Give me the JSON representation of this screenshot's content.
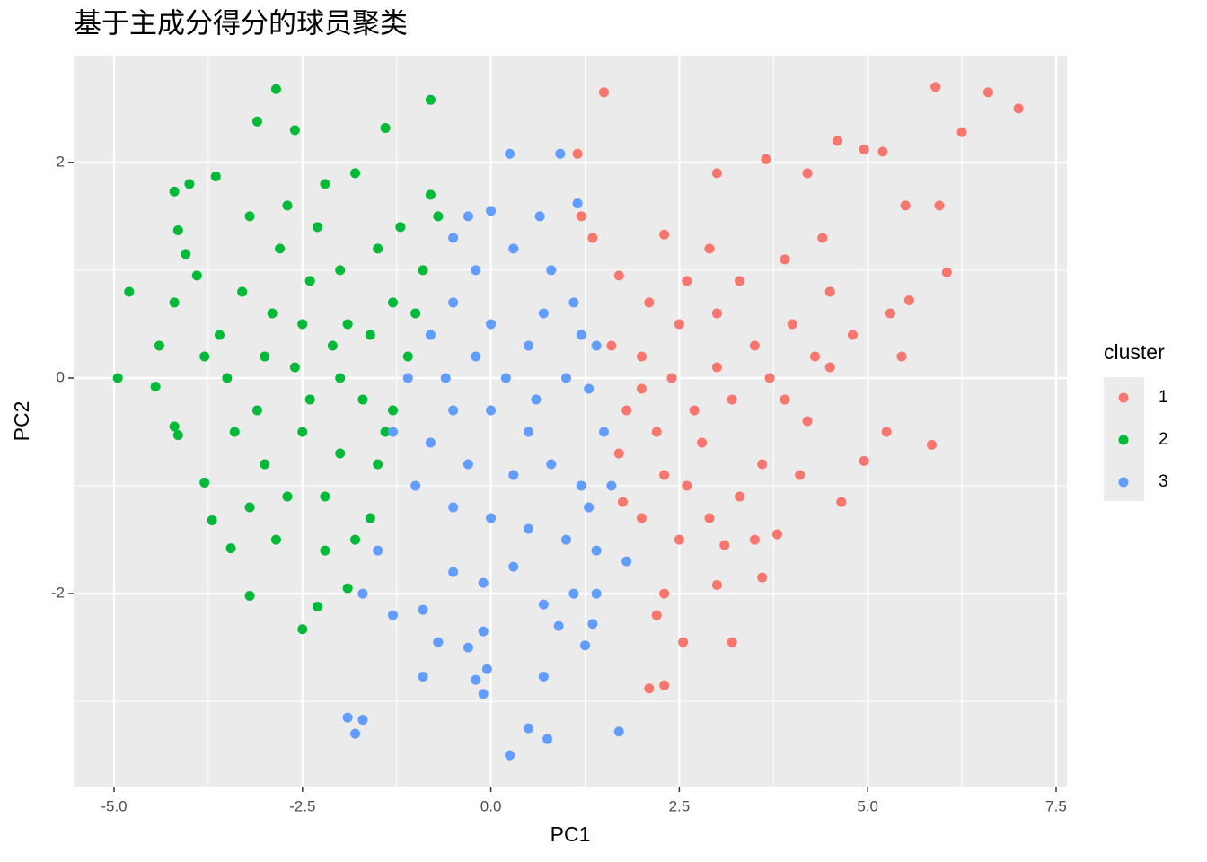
{
  "chart_data": {
    "type": "scatter",
    "title": "基于主成分得分的球员聚类",
    "x_label": "PC1",
    "y_label": "PC2",
    "legend_title": "cluster",
    "legend_position": "right",
    "grid": true,
    "xlim": [
      -5.536,
      7.643
    ],
    "ylim": [
      -3.79,
      2.99
    ],
    "xticks": [
      {
        "value": -5,
        "label": "-5.0"
      },
      -2.5,
      {
        "value": 0,
        "label": "0.0"
      },
      2.5,
      {
        "value": 5,
        "label": "5.0"
      },
      {
        "value": 7.5,
        "label": "7.5"
      }
    ],
    "yticks": [
      -2,
      0,
      2
    ],
    "xminorticks": [
      -3.75,
      -1.25,
      1.25,
      3.75,
      6.25
    ],
    "yminorticks": [
      -3,
      -1,
      1
    ],
    "series": [
      {
        "name": "1",
        "color": "#F8766D",
        "x": [
          1.5,
          5.9,
          6.6,
          7.0,
          6.25,
          1.15,
          3.65,
          6.05,
          5.85,
          5.25,
          2.1,
          2.3,
          2.55,
          3.2,
          2.2,
          2.3,
          3.0,
          3.6,
          4.65,
          4.95,
          5.45,
          5.3,
          5.55,
          5.2,
          4.6,
          4.95,
          5.5,
          5.95,
          1.7,
          1.35,
          1.2,
          2.3,
          3.0,
          4.2,
          1.75,
          2.0,
          2.5,
          3.1,
          3.5,
          3.8,
          2.6,
          2.2,
          1.8,
          2.0,
          2.5,
          3.0,
          3.5,
          4.0,
          4.5,
          3.2,
          2.8,
          3.6,
          4.2,
          4.5,
          2.4,
          3.0,
          2.7,
          3.3,
          3.9,
          4.4,
          2.9,
          2.1,
          1.6,
          1.7,
          2.3,
          3.3,
          3.9,
          4.8,
          4.1,
          2.6,
          3.7,
          2.0,
          2.9,
          4.3
        ],
        "y": [
          2.65,
          2.7,
          2.65,
          2.5,
          2.28,
          2.08,
          2.03,
          0.98,
          -0.62,
          -0.5,
          -2.88,
          -2.85,
          -2.45,
          -2.45,
          -2.2,
          -2.0,
          -1.92,
          -1.85,
          -1.15,
          -0.77,
          0.2,
          0.6,
          0.72,
          2.1,
          2.2,
          2.12,
          1.6,
          1.6,
          0.95,
          1.3,
          1.5,
          1.33,
          1.9,
          1.9,
          -1.15,
          -1.3,
          -1.5,
          -1.55,
          -1.5,
          -1.45,
          -1.0,
          -0.5,
          -0.3,
          0.2,
          0.5,
          0.6,
          0.3,
          0.5,
          0.8,
          -0.2,
          -0.6,
          -0.8,
          -0.4,
          0.1,
          0.0,
          0.1,
          -0.3,
          0.9,
          1.1,
          1.3,
          1.2,
          0.7,
          0.3,
          -0.7,
          -0.9,
          -1.1,
          -0.2,
          0.4,
          -0.9,
          0.9,
          0.0,
          -0.1,
          -1.3,
          0.2
        ]
      },
      {
        "name": "2",
        "color": "#00BA38",
        "x": [
          -4.95,
          -4.8,
          -2.85,
          -0.8,
          -3.1,
          -2.6,
          -1.4,
          -4.2,
          -4.0,
          -3.65,
          -4.15,
          -4.05,
          -3.9,
          -4.2,
          -4.4,
          -4.45,
          -4.2,
          -4.15,
          -3.8,
          -3.7,
          -3.45,
          -3.2,
          -2.5,
          -2.3,
          -1.9,
          -2.85,
          -2.2,
          -1.6,
          -1.5,
          -1.3,
          -1.1,
          -1.0,
          -0.9,
          -0.7,
          -0.8,
          -1.5,
          -2.0,
          -2.5,
          -3.0,
          -3.5,
          -2.0,
          -2.5,
          -3.0,
          -2.0,
          -1.7,
          -1.9,
          -2.3,
          -2.8,
          -3.3,
          -3.6,
          -3.1,
          -2.7,
          -2.2,
          -1.8,
          -3.4,
          -2.4,
          -1.6,
          -2.6,
          -2.1,
          -3.8,
          -2.9,
          -1.3,
          -2.2,
          -1.8,
          -2.7,
          -3.2,
          -1.2,
          -1.4,
          -2.4,
          -3.2
        ],
        "y": [
          0.0,
          0.8,
          2.68,
          2.58,
          2.38,
          2.3,
          2.32,
          1.73,
          1.8,
          1.87,
          1.37,
          1.15,
          0.95,
          0.7,
          0.3,
          -0.08,
          -0.45,
          -0.53,
          -0.97,
          -1.32,
          -1.58,
          -2.02,
          -2.33,
          -2.12,
          -1.95,
          -1.5,
          -1.6,
          -1.3,
          -0.8,
          -0.3,
          0.2,
          0.6,
          1.0,
          1.5,
          1.7,
          1.2,
          1.0,
          0.5,
          0.2,
          0.0,
          0.0,
          -0.5,
          -0.8,
          -0.7,
          -0.2,
          0.5,
          1.4,
          1.2,
          0.8,
          0.4,
          -0.3,
          -1.1,
          -1.1,
          -1.5,
          -0.5,
          0.9,
          0.4,
          0.1,
          0.3,
          0.2,
          0.6,
          0.7,
          1.8,
          1.9,
          1.6,
          1.5,
          1.4,
          -0.5,
          -0.2,
          -1.2
        ]
      },
      {
        "name": "3",
        "color": "#619CFF",
        "x": [
          0.25,
          0.92,
          1.15,
          0.65,
          0.0,
          -0.3,
          -0.5,
          -0.2,
          0.3,
          0.8,
          1.1,
          1.4,
          1.3,
          1.5,
          1.6,
          1.8,
          1.4,
          1.0,
          0.5,
          0.0,
          -0.5,
          -1.0,
          -1.3,
          -1.1,
          -0.8,
          -0.5,
          0.0,
          0.5,
          1.0,
          0.5,
          0.0,
          -0.5,
          -0.3,
          0.3,
          0.8,
          1.2,
          -0.8,
          0.2,
          0.7,
          -0.2,
          -1.5,
          -1.7,
          -1.3,
          -0.9,
          -0.5,
          -0.1,
          0.3,
          0.7,
          1.1,
          1.4,
          -0.7,
          -0.3,
          -0.1,
          -0.05,
          -0.2,
          -0.9,
          0.7,
          -0.1,
          1.25,
          1.35,
          -1.9,
          -1.7,
          -1.8,
          0.5,
          0.75,
          0.25,
          1.7,
          0.9,
          1.3,
          -0.6,
          0.6,
          1.2
        ],
        "y": [
          2.08,
          2.08,
          1.62,
          1.5,
          1.55,
          1.5,
          1.3,
          1.0,
          1.2,
          1.0,
          0.7,
          0.3,
          -0.1,
          -0.5,
          -1.0,
          -1.7,
          -1.6,
          -1.5,
          -1.4,
          -1.3,
          -1.2,
          -1.0,
          -0.5,
          0.0,
          0.4,
          0.7,
          0.5,
          0.3,
          0.0,
          -0.5,
          -0.3,
          -0.3,
          -0.8,
          -0.9,
          -0.8,
          -1.0,
          -0.6,
          0.0,
          0.6,
          0.2,
          -1.6,
          -2.0,
          -2.2,
          -2.15,
          -1.8,
          -1.9,
          -1.75,
          -2.1,
          -2.0,
          -2.0,
          -2.45,
          -2.5,
          -2.35,
          -2.7,
          -2.8,
          -2.77,
          -2.77,
          -2.93,
          -2.48,
          -2.28,
          -3.15,
          -3.17,
          -3.3,
          -3.25,
          -3.35,
          -3.5,
          -3.28,
          -2.3,
          -1.2,
          0.0,
          -0.2,
          0.4
        ]
      }
    ]
  }
}
